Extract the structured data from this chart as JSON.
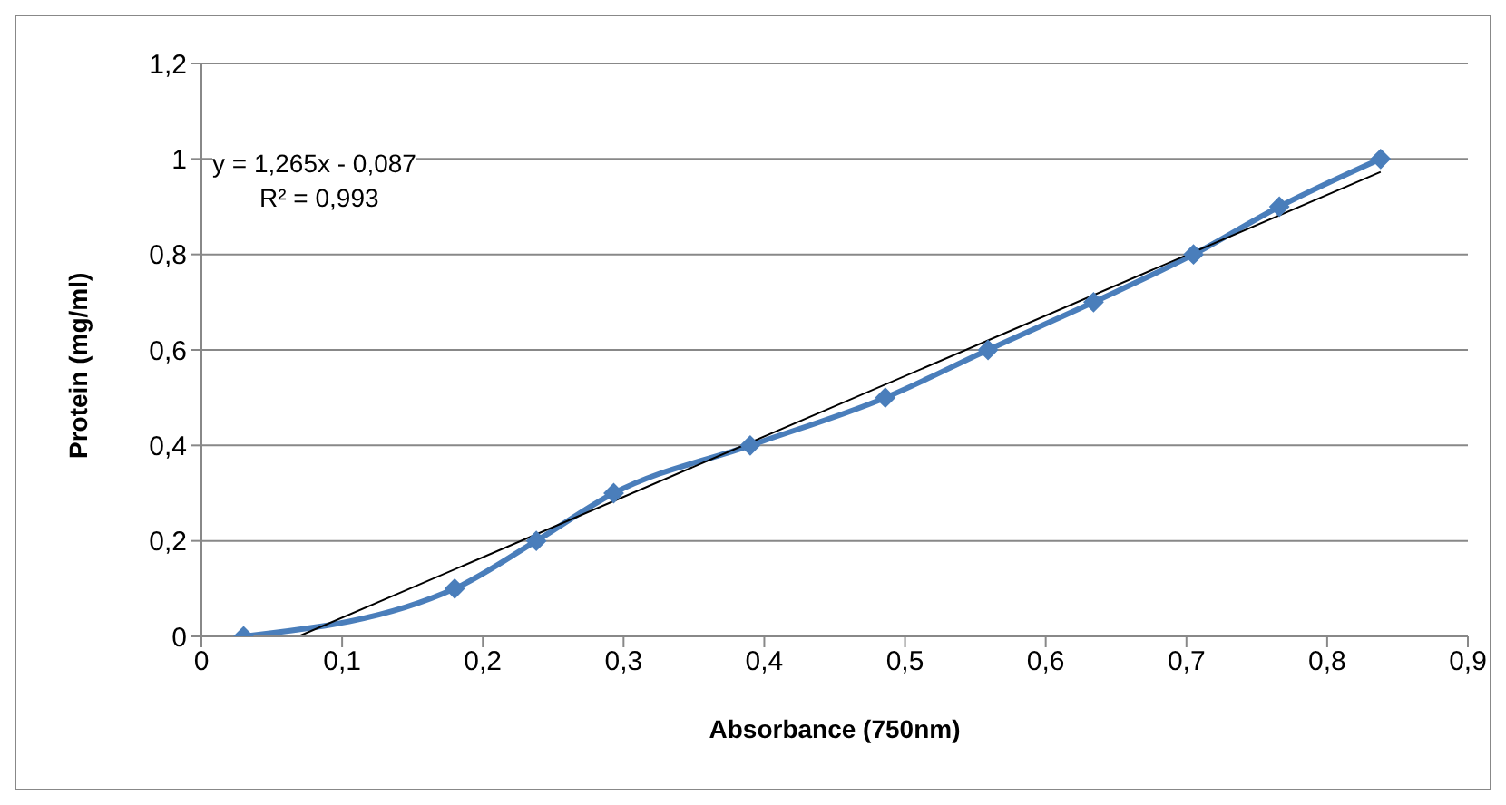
{
  "chart_data": {
    "type": "line",
    "xlabel": "Absorbance (750nm)",
    "ylabel": "Protein (mg/ml)",
    "annotations": [
      "y = 1,265x - 0,087",
      "R² = 0,993"
    ],
    "series": [
      {
        "color": "#4a7ebb",
        "marker": "diamond",
        "line_style": "solid",
        "x": [
          0.03,
          0.18,
          0.238,
          0.293,
          0.39,
          0.486,
          0.559,
          0.634,
          0.705,
          0.766,
          0.838
        ],
        "values": [
          0,
          0.1,
          0.2,
          0.3,
          0.4,
          0.5,
          0.6,
          0.7,
          0.8,
          0.9,
          1
        ]
      },
      {
        "type": "line",
        "color": "#000000",
        "marker": "none",
        "line_style": "solid",
        "x": [
          0.069,
          0.838
        ],
        "values": [
          0,
          0.973
        ]
      }
    ],
    "xlim": [
      0,
      0.9
    ],
    "xticks": [
      0,
      {
        "value": 0.1,
        "label": "0,1"
      },
      {
        "value": 0.2,
        "label": "0,2"
      },
      {
        "value": 0.3,
        "label": "0,3"
      },
      {
        "value": 0.4,
        "label": "0,4"
      },
      {
        "value": 0.5,
        "label": "0,5"
      },
      {
        "value": 0.6,
        "label": "0,6"
      },
      {
        "value": 0.7,
        "label": "0,7"
      },
      {
        "value": 0.8,
        "label": "0,8"
      },
      {
        "value": 0.9,
        "label": "0,9"
      }
    ],
    "ylim": [
      0,
      1.2
    ],
    "yticks": [
      0,
      {
        "value": 0.2,
        "label": "0,2"
      },
      {
        "value": 0.4,
        "label": "0,4"
      },
      {
        "value": 0.6,
        "label": "0,6"
      },
      {
        "value": 0.8,
        "label": "0,8"
      },
      1,
      {
        "value": 1.2,
        "label": "1,2"
      }
    ],
    "grid": "y"
  }
}
